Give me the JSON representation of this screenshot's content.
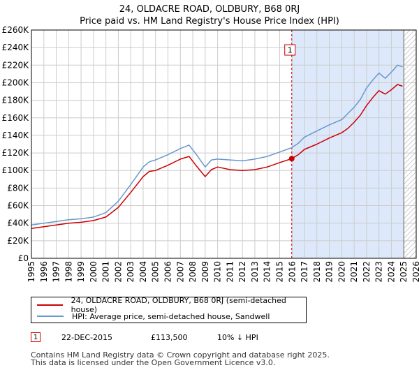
{
  "colors": {
    "property": "#cc0000",
    "hpi": "#6699cc",
    "shade": "#dde8fa",
    "grid": "#cccccc"
  },
  "chart_data": {
    "type": "line",
    "title": "24, OLDACRE ROAD, OLDBURY, B68 0RJ",
    "subtitle": "Price paid vs. HM Land Registry's House Price Index (HPI)",
    "xlim": [
      1995,
      2026
    ],
    "ylim": [
      0,
      260000
    ],
    "y_ticks": [
      0,
      20000,
      40000,
      60000,
      80000,
      100000,
      120000,
      140000,
      160000,
      180000,
      200000,
      220000,
      240000,
      260000
    ],
    "y_tick_labels": [
      "£0",
      "£20K",
      "£40K",
      "£60K",
      "£80K",
      "£100K",
      "£120K",
      "£140K",
      "£160K",
      "£180K",
      "£200K",
      "£220K",
      "£240K",
      "£260K"
    ],
    "x_ticks": [
      1995,
      1996,
      1997,
      1998,
      1999,
      2000,
      2001,
      2002,
      2003,
      2004,
      2005,
      2006,
      2007,
      2008,
      2009,
      2010,
      2011,
      2012,
      2013,
      2014,
      2015,
      2016,
      2017,
      2018,
      2019,
      2020,
      2021,
      2022,
      2023,
      2024,
      2025,
      2026
    ],
    "x_tick_labels": [
      "1995",
      "1996",
      "1997",
      "1998",
      "1999",
      "2000",
      "2001",
      "2002",
      "2003",
      "2004",
      "2005",
      "2006",
      "2007",
      "2008",
      "2009",
      "2010",
      "2011",
      "2012",
      "2013",
      "2014",
      "2015",
      "2016",
      "2017",
      "2018",
      "2019",
      "2020",
      "2021",
      "2022",
      "2023",
      "2024",
      "2025",
      "2026"
    ],
    "shaded_from": 2015.97,
    "data_end": 2025.0,
    "series": [
      {
        "name": "24, OLDACRE ROAD, OLDBURY, B68 0RJ (semi-detached house)",
        "color": "#cc0000",
        "x": [
          1995,
          1996,
          1997,
          1998,
          1999,
          2000,
          2001,
          2002,
          2003,
          2004,
          2004.5,
          2005,
          2006,
          2007,
          2007.7,
          2008.3,
          2009.0,
          2009.5,
          2010,
          2011,
          2012,
          2013,
          2014,
          2015,
          2015.97,
          2016.5,
          2017,
          2018,
          2019,
          2020,
          2020.5,
          2021,
          2021.5,
          2022,
          2022.5,
          2023,
          2023.5,
          2024,
          2024.5,
          2024.9
        ],
        "y": [
          34000,
          36000,
          38000,
          40000,
          41000,
          43000,
          47000,
          58000,
          75000,
          93000,
          99000,
          100000,
          106000,
          113000,
          116000,
          105000,
          93000,
          101000,
          104000,
          101000,
          100000,
          101000,
          104000,
          109000,
          113500,
          118000,
          124000,
          130000,
          137000,
          143000,
          148000,
          155000,
          163000,
          174000,
          183000,
          191000,
          187000,
          192000,
          198000,
          196000
        ]
      },
      {
        "name": "HPI: Average price, semi-detached house, Sandwell",
        "color": "#6699cc",
        "x": [
          1995,
          1996,
          1997,
          1998,
          1999,
          2000,
          2001,
          2002,
          2003,
          2004,
          2004.5,
          2005,
          2006,
          2007,
          2007.7,
          2008.3,
          2009.0,
          2009.5,
          2010,
          2011,
          2012,
          2013,
          2014,
          2015,
          2015.97,
          2016.5,
          2017,
          2018,
          2019,
          2020,
          2020.5,
          2021,
          2021.5,
          2022,
          2022.5,
          2023,
          2023.5,
          2024,
          2024.5,
          2024.9
        ],
        "y": [
          38000,
          40000,
          42000,
          44000,
          45000,
          47000,
          52000,
          65000,
          84000,
          104000,
          110000,
          112000,
          118000,
          125000,
          129000,
          118000,
          104000,
          112000,
          113000,
          112000,
          111000,
          113000,
          116000,
          121000,
          126000,
          131000,
          138000,
          145000,
          152000,
          158000,
          165000,
          172000,
          181000,
          194000,
          203000,
          211000,
          205000,
          212000,
          220000,
          218000
        ]
      }
    ],
    "annotations": [
      {
        "label": "1",
        "x": 2015.97,
        "y": 113500
      }
    ]
  },
  "legend": {
    "property": "24, OLDACRE ROAD, OLDBURY, B68 0RJ (semi-detached house)",
    "hpi": "HPI: Average price, semi-detached house, Sandwell"
  },
  "transaction": {
    "marker": "1",
    "date": "22-DEC-2015",
    "price": "£113,500",
    "hpi_diff": "10% ↓ HPI"
  },
  "footer": {
    "line1": "Contains HM Land Registry data © Crown copyright and database right 2025.",
    "line2": "This data is licensed under the Open Government Licence v3.0."
  }
}
